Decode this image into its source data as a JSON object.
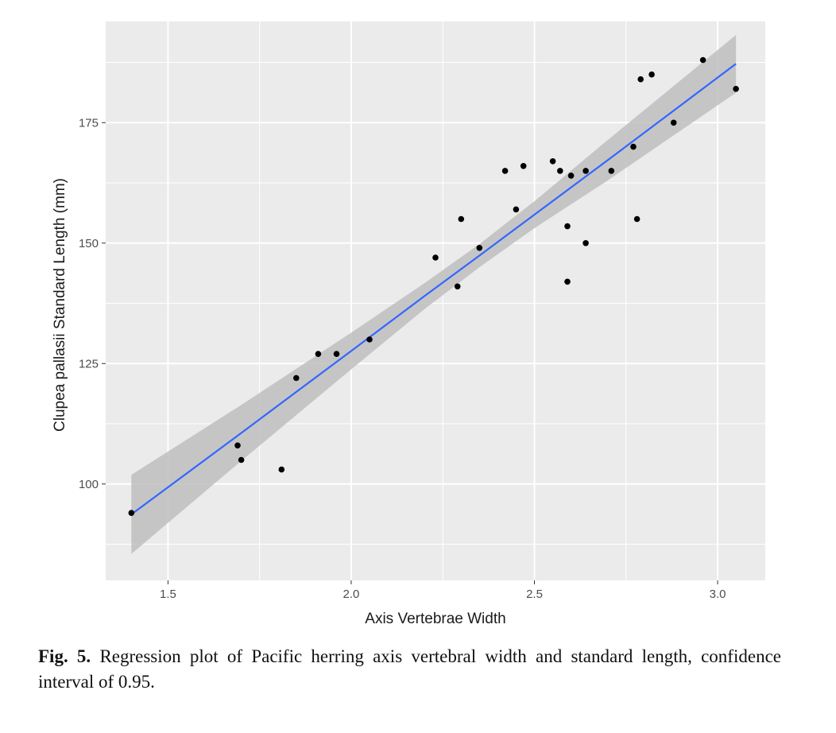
{
  "chart_data": {
    "type": "scatter",
    "xlabel": "Axis Vertebrae Width",
    "ylabel": "Clupea pallasii Standard Length (mm)",
    "xlim": [
      1.33,
      3.13
    ],
    "ylim": [
      80,
      196
    ],
    "x_ticks": [
      1.5,
      2.0,
      2.5,
      3.0
    ],
    "x_tick_labels": [
      "1.5",
      "2.0",
      "2.5",
      "3.0"
    ],
    "y_ticks": [
      100,
      125,
      150,
      175
    ],
    "y_tick_labels": [
      "100",
      "125",
      "150",
      "175"
    ],
    "grid": true,
    "points": [
      {
        "x": 1.4,
        "y": 94
      },
      {
        "x": 1.69,
        "y": 108
      },
      {
        "x": 1.7,
        "y": 105
      },
      {
        "x": 1.81,
        "y": 103
      },
      {
        "x": 1.85,
        "y": 122
      },
      {
        "x": 1.91,
        "y": 127
      },
      {
        "x": 1.96,
        "y": 127
      },
      {
        "x": 2.05,
        "y": 130
      },
      {
        "x": 2.23,
        "y": 147
      },
      {
        "x": 2.29,
        "y": 141
      },
      {
        "x": 2.3,
        "y": 155
      },
      {
        "x": 2.35,
        "y": 149
      },
      {
        "x": 2.42,
        "y": 165
      },
      {
        "x": 2.45,
        "y": 157
      },
      {
        "x": 2.47,
        "y": 166
      },
      {
        "x": 2.55,
        "y": 167
      },
      {
        "x": 2.57,
        "y": 165
      },
      {
        "x": 2.59,
        "y": 153.5
      },
      {
        "x": 2.59,
        "y": 142
      },
      {
        "x": 2.6,
        "y": 164
      },
      {
        "x": 2.64,
        "y": 165
      },
      {
        "x": 2.64,
        "y": 150
      },
      {
        "x": 2.71,
        "y": 165
      },
      {
        "x": 2.77,
        "y": 170
      },
      {
        "x": 2.78,
        "y": 155
      },
      {
        "x": 2.79,
        "y": 184
      },
      {
        "x": 2.82,
        "y": 185
      },
      {
        "x": 2.88,
        "y": 175
      },
      {
        "x": 2.96,
        "y": 188
      },
      {
        "x": 3.05,
        "y": 182
      }
    ],
    "regression": {
      "x": [
        1.4,
        1.7,
        2.0,
        2.2,
        2.35,
        2.5,
        2.7,
        3.05
      ],
      "fit": [
        93.7,
        110.6,
        127.6,
        139.0,
        147.4,
        155.9,
        167.2,
        187.2
      ],
      "lower": [
        85.5,
        104.8,
        123.8,
        136.3,
        145.0,
        153.1,
        163.0,
        181.2
      ],
      "upper": [
        101.9,
        116.4,
        131.4,
        141.7,
        149.8,
        158.7,
        171.4,
        193.2
      ],
      "confidence": 0.95,
      "line_color": "#3366ff",
      "band_color": "#bebebe"
    },
    "panel_background": "#ebebeb",
    "grid_color": "#ffffff",
    "point_color": "#000000"
  },
  "caption": {
    "label": "Fig. 5.",
    "text": "Regression plot of Pacific herring axis vertebral width and standard length, confidence interval of 0.95."
  }
}
